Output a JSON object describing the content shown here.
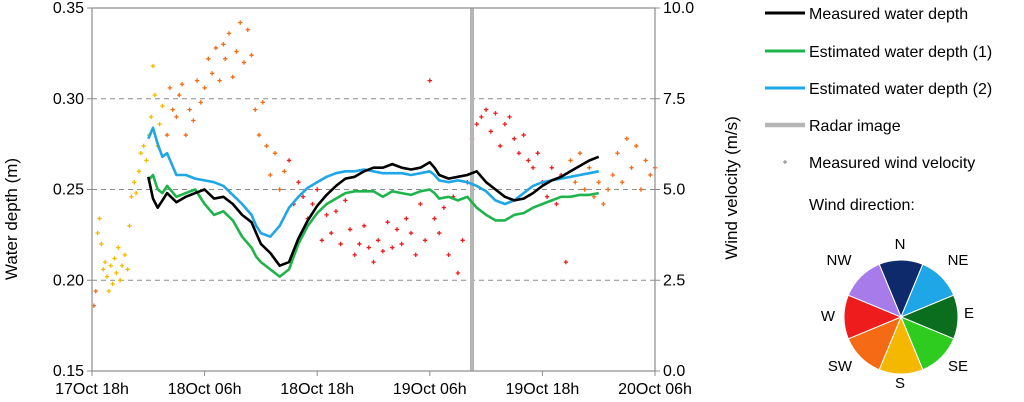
{
  "chart_data": {
    "type": "line",
    "x_tick_labels": [
      "17Oct 18h",
      "18Oct 06h",
      "18Oct 18h",
      "19Oct 06h",
      "19Oct 18h",
      "20Oct 06h"
    ],
    "x_range_hours": [
      0,
      60
    ],
    "y_left": {
      "label": "Water depth (m)",
      "range": [
        0.15,
        0.35
      ],
      "ticks": [
        "0.15",
        "0.20",
        "0.25",
        "0.30",
        "0.35"
      ]
    },
    "y_right": {
      "label": "Wind velocity (m/s)",
      "range": [
        0,
        10
      ],
      "ticks": [
        "0.0",
        "2.5",
        "5.0",
        "7.5",
        "10.0"
      ]
    },
    "grid": "horizontal dashed",
    "legend_position": "right",
    "series": [
      {
        "name": "Measured water depth",
        "axis": "left",
        "color": "#000000",
        "x": [
          6,
          6.5,
          7,
          7.5,
          8,
          9,
          10,
          11,
          12,
          13,
          14,
          15,
          16,
          17,
          17.5,
          18,
          19,
          20,
          21,
          22,
          23,
          24,
          25,
          26,
          27,
          28,
          29,
          30,
          31,
          32,
          33,
          34,
          35,
          36,
          36.5,
          37,
          38,
          39,
          40,
          41,
          42,
          43,
          44,
          45,
          46,
          47,
          48,
          49,
          50,
          51,
          52,
          53,
          54
        ],
        "y": [
          0.257,
          0.245,
          0.24,
          0.244,
          0.248,
          0.243,
          0.246,
          0.248,
          0.25,
          0.245,
          0.246,
          0.242,
          0.236,
          0.232,
          0.226,
          0.22,
          0.215,
          0.208,
          0.21,
          0.223,
          0.233,
          0.241,
          0.247,
          0.252,
          0.256,
          0.257,
          0.26,
          0.262,
          0.262,
          0.264,
          0.262,
          0.261,
          0.262,
          0.265,
          0.262,
          0.258,
          0.256,
          0.257,
          0.258,
          0.26,
          0.254,
          0.25,
          0.246,
          0.244,
          0.245,
          0.248,
          0.252,
          0.255,
          0.257,
          0.26,
          0.263,
          0.266,
          0.268
        ]
      },
      {
        "name": "Estimated water depth (1)",
        "axis": "left",
        "color": "#1eb44b",
        "x": [
          6,
          6.5,
          7,
          7.5,
          8,
          9,
          10,
          11,
          12,
          13,
          14,
          15,
          16,
          17,
          17.5,
          18,
          19,
          20,
          21,
          22,
          23,
          24,
          25,
          26,
          27,
          28,
          29,
          30,
          31,
          32,
          33,
          34,
          35,
          36,
          36.5,
          37,
          38,
          39,
          40,
          41,
          42,
          43,
          44,
          45,
          46,
          47,
          48,
          49,
          50,
          51,
          52,
          53,
          54
        ],
        "y": [
          0.255,
          0.258,
          0.25,
          0.248,
          0.252,
          0.246,
          0.248,
          0.25,
          0.242,
          0.236,
          0.238,
          0.233,
          0.224,
          0.218,
          0.213,
          0.21,
          0.206,
          0.202,
          0.206,
          0.22,
          0.23,
          0.237,
          0.242,
          0.245,
          0.248,
          0.249,
          0.249,
          0.249,
          0.246,
          0.249,
          0.248,
          0.247,
          0.249,
          0.25,
          0.248,
          0.245,
          0.246,
          0.244,
          0.246,
          0.24,
          0.236,
          0.233,
          0.233,
          0.236,
          0.237,
          0.24,
          0.242,
          0.244,
          0.246,
          0.246,
          0.247,
          0.247,
          0.248
        ]
      },
      {
        "name": "Estimated water depth (2)",
        "axis": "left",
        "color": "#1ea6e6",
        "x": [
          6,
          6.5,
          7,
          7.5,
          8,
          9,
          10,
          11,
          12,
          13,
          14,
          15,
          16,
          17,
          17.5,
          18,
          19,
          20,
          21,
          22,
          23,
          24,
          25,
          26,
          27,
          28,
          29,
          30,
          31,
          32,
          33,
          34,
          35,
          36,
          36.5,
          37,
          38,
          39,
          40,
          41,
          42,
          43,
          44,
          45,
          46,
          47,
          48,
          49,
          50,
          51,
          52,
          53,
          54
        ],
        "y": [
          0.278,
          0.284,
          0.275,
          0.268,
          0.27,
          0.258,
          0.258,
          0.256,
          0.255,
          0.254,
          0.252,
          0.247,
          0.242,
          0.236,
          0.23,
          0.226,
          0.224,
          0.23,
          0.24,
          0.246,
          0.251,
          0.254,
          0.257,
          0.259,
          0.26,
          0.26,
          0.261,
          0.26,
          0.259,
          0.259,
          0.259,
          0.258,
          0.259,
          0.26,
          0.258,
          0.255,
          0.254,
          0.255,
          0.254,
          0.252,
          0.249,
          0.244,
          0.242,
          0.244,
          0.248,
          0.252,
          0.254,
          0.255,
          0.256,
          0.257,
          0.258,
          0.259,
          0.26
        ]
      },
      {
        "name": "Radar image",
        "kind": "vertical-line",
        "x": 40.5,
        "color": "#b5b5b5"
      },
      {
        "name": "Measured wind velocity",
        "axis": "right",
        "kind": "scatter",
        "points": [
          [
            0.2,
            1.8,
            "SW"
          ],
          [
            0.4,
            2.2,
            "SW"
          ],
          [
            0.6,
            3.8,
            "S"
          ],
          [
            0.8,
            4.2,
            "S"
          ],
          [
            1.0,
            3.5,
            "S"
          ],
          [
            1.2,
            2.8,
            "S"
          ],
          [
            1.4,
            3.0,
            "S"
          ],
          [
            1.6,
            2.6,
            "S"
          ],
          [
            1.8,
            2.2,
            "S"
          ],
          [
            2.0,
            2.9,
            "S"
          ],
          [
            2.2,
            2.4,
            "S"
          ],
          [
            2.4,
            3.1,
            "S"
          ],
          [
            2.6,
            2.7,
            "S"
          ],
          [
            2.8,
            3.4,
            "S"
          ],
          [
            3.0,
            2.5,
            "S"
          ],
          [
            3.2,
            2.9,
            "S"
          ],
          [
            3.5,
            3.2,
            "S"
          ],
          [
            3.8,
            2.8,
            "S"
          ],
          [
            4.0,
            4.0,
            "S"
          ],
          [
            4.2,
            4.8,
            "S"
          ],
          [
            4.5,
            5.2,
            "S"
          ],
          [
            4.7,
            4.9,
            "S"
          ],
          [
            5.0,
            5.5,
            "S"
          ],
          [
            5.2,
            6.0,
            "S"
          ],
          [
            5.5,
            6.2,
            "S"
          ],
          [
            5.8,
            5.8,
            "S"
          ],
          [
            6.1,
            6.5,
            "S"
          ],
          [
            6.3,
            7.0,
            "S"
          ],
          [
            6.5,
            8.4,
            "S"
          ],
          [
            6.7,
            7.6,
            "S"
          ],
          [
            7.0,
            6.2,
            "S"
          ],
          [
            7.2,
            6.8,
            "S"
          ],
          [
            7.5,
            7.3,
            "S"
          ],
          [
            8.0,
            6.5,
            "SW"
          ],
          [
            8.3,
            7.8,
            "SW"
          ],
          [
            8.6,
            7.2,
            "SW"
          ],
          [
            9.0,
            7.0,
            "SW"
          ],
          [
            9.3,
            7.6,
            "SW"
          ],
          [
            9.6,
            7.9,
            "SW"
          ],
          [
            10.0,
            6.5,
            "SW"
          ],
          [
            10.4,
            7.2,
            "SW"
          ],
          [
            10.8,
            6.9,
            "SW"
          ],
          [
            11.2,
            8.0,
            "SW"
          ],
          [
            11.6,
            7.4,
            "SW"
          ],
          [
            12.0,
            7.8,
            "SW"
          ],
          [
            12.4,
            8.6,
            "SW"
          ],
          [
            12.8,
            8.2,
            "SW"
          ],
          [
            13.2,
            8.9,
            "SW"
          ],
          [
            13.6,
            8.0,
            "SW"
          ],
          [
            14.0,
            9.0,
            "SW"
          ],
          [
            14.2,
            8.6,
            "SW"
          ],
          [
            14.6,
            9.3,
            "SW"
          ],
          [
            15.0,
            8.1,
            "SW"
          ],
          [
            15.4,
            8.8,
            "SW"
          ],
          [
            15.8,
            9.6,
            "SW"
          ],
          [
            16.2,
            8.5,
            "SW"
          ],
          [
            16.6,
            9.4,
            "SW"
          ],
          [
            17.0,
            8.7,
            "SW"
          ],
          [
            17.4,
            7.2,
            "SW"
          ],
          [
            17.8,
            6.5,
            "SW"
          ],
          [
            18.2,
            7.4,
            "SW"
          ],
          [
            18.6,
            6.2,
            "SW"
          ],
          [
            19.0,
            5.4,
            "SW"
          ],
          [
            19.5,
            6.0,
            "SW"
          ],
          [
            20.0,
            5.0,
            "SW"
          ],
          [
            20.5,
            5.5,
            "SW"
          ],
          [
            21.0,
            5.8,
            "W"
          ],
          [
            21.5,
            4.6,
            "W"
          ],
          [
            22.0,
            5.2,
            "W"
          ],
          [
            22.5,
            4.8,
            "W"
          ],
          [
            23.0,
            4.2,
            "W"
          ],
          [
            23.5,
            4.6,
            "W"
          ],
          [
            24.0,
            5.0,
            "W"
          ],
          [
            24.5,
            3.6,
            "W"
          ],
          [
            25.0,
            4.3,
            "W"
          ],
          [
            25.5,
            3.8,
            "W"
          ],
          [
            26.0,
            4.4,
            "W"
          ],
          [
            26.5,
            3.5,
            "W"
          ],
          [
            27.0,
            4.7,
            "W"
          ],
          [
            27.5,
            3.9,
            "W"
          ],
          [
            28.0,
            3.2,
            "W"
          ],
          [
            28.5,
            3.5,
            "W"
          ],
          [
            29.0,
            4.0,
            "W"
          ],
          [
            29.5,
            3.4,
            "W"
          ],
          [
            30.0,
            3.0,
            "W"
          ],
          [
            30.5,
            3.6,
            "W"
          ],
          [
            31.0,
            3.3,
            "W"
          ],
          [
            31.5,
            4.1,
            "W"
          ],
          [
            32.0,
            3.4,
            "W"
          ],
          [
            32.5,
            3.9,
            "W"
          ],
          [
            33.0,
            3.5,
            "W"
          ],
          [
            33.5,
            4.2,
            "W"
          ],
          [
            34.0,
            3.8,
            "W"
          ],
          [
            34.5,
            3.2,
            "W"
          ],
          [
            35.0,
            4.6,
            "W"
          ],
          [
            35.5,
            3.6,
            "W"
          ],
          [
            36.0,
            8.0,
            "W"
          ],
          [
            36.5,
            4.2,
            "W"
          ],
          [
            37.0,
            3.8,
            "W"
          ],
          [
            37.5,
            4.5,
            "W"
          ],
          [
            38.0,
            3.2,
            "W"
          ],
          [
            38.5,
            4.8,
            "W"
          ],
          [
            39.0,
            2.7,
            "W"
          ],
          [
            39.5,
            3.6,
            "W"
          ],
          [
            40.0,
            5.2,
            "W"
          ],
          [
            40.5,
            6.4,
            "W"
          ],
          [
            41.0,
            6.8,
            "W"
          ],
          [
            41.5,
            7.0,
            "W"
          ],
          [
            42.0,
            7.2,
            "W"
          ],
          [
            42.5,
            6.6,
            "W"
          ],
          [
            43.0,
            7.1,
            "W"
          ],
          [
            43.5,
            6.2,
            "W"
          ],
          [
            44.0,
            6.8,
            "W"
          ],
          [
            44.5,
            7.0,
            "W"
          ],
          [
            45.0,
            6.4,
            "W"
          ],
          [
            45.5,
            6.0,
            "W"
          ],
          [
            46.0,
            6.5,
            "W"
          ],
          [
            46.5,
            5.8,
            "W"
          ],
          [
            47.0,
            5.6,
            "W"
          ],
          [
            47.5,
            6.0,
            "W"
          ],
          [
            48.0,
            5.2,
            "W"
          ],
          [
            48.5,
            4.8,
            "W"
          ],
          [
            49.0,
            5.6,
            "W"
          ],
          [
            49.5,
            4.6,
            "W"
          ],
          [
            50.0,
            5.4,
            "W"
          ],
          [
            50.5,
            3.0,
            "W"
          ],
          [
            51.0,
            5.8,
            "SW"
          ],
          [
            51.5,
            5.2,
            "SW"
          ],
          [
            52.0,
            6.0,
            "SW"
          ],
          [
            52.5,
            5.0,
            "SW"
          ],
          [
            53.0,
            5.6,
            "SW"
          ],
          [
            53.5,
            4.8,
            "SW"
          ],
          [
            54.0,
            5.2,
            "SW"
          ],
          [
            54.5,
            4.6,
            "SW"
          ],
          [
            55.0,
            5.0,
            "SW"
          ],
          [
            55.5,
            5.4,
            "SW"
          ],
          [
            56.0,
            6.0,
            "SW"
          ],
          [
            56.5,
            5.2,
            "SW"
          ],
          [
            57.0,
            6.4,
            "SW"
          ],
          [
            57.5,
            5.6,
            "SW"
          ],
          [
            58.0,
            6.2,
            "SW"
          ],
          [
            58.5,
            5.0,
            "SW"
          ],
          [
            59.0,
            5.8,
            "SW"
          ],
          [
            59.5,
            5.4,
            "SW"
          ],
          [
            60.0,
            5.6,
            "SW"
          ]
        ]
      }
    ],
    "legend": {
      "items": [
        {
          "label": "Measured water depth",
          "color": "#000000",
          "kind": "line"
        },
        {
          "label": "Estimated water depth (1)",
          "color": "#1eb44b",
          "kind": "line"
        },
        {
          "label": "Estimated water depth (2)",
          "color": "#1ea6e6",
          "kind": "line"
        },
        {
          "label": "Radar image",
          "color": "#b5b5b5",
          "kind": "thick-line"
        },
        {
          "label": "Measured wind velocity",
          "color": "#808080",
          "kind": "marker"
        }
      ],
      "wind_direction_title": "Wind direction:",
      "compass": [
        {
          "dir": "N",
          "color": "#0f2a6b"
        },
        {
          "dir": "NE",
          "color": "#1ea6e6"
        },
        {
          "dir": "E",
          "color": "#0b6e1f"
        },
        {
          "dir": "SE",
          "color": "#2ecc1e"
        },
        {
          "dir": "S",
          "color": "#f5b800"
        },
        {
          "dir": "SW",
          "color": "#f56a14"
        },
        {
          "dir": "W",
          "color": "#ee1c1c"
        },
        {
          "dir": "NW",
          "color": "#a77bea"
        }
      ]
    }
  }
}
